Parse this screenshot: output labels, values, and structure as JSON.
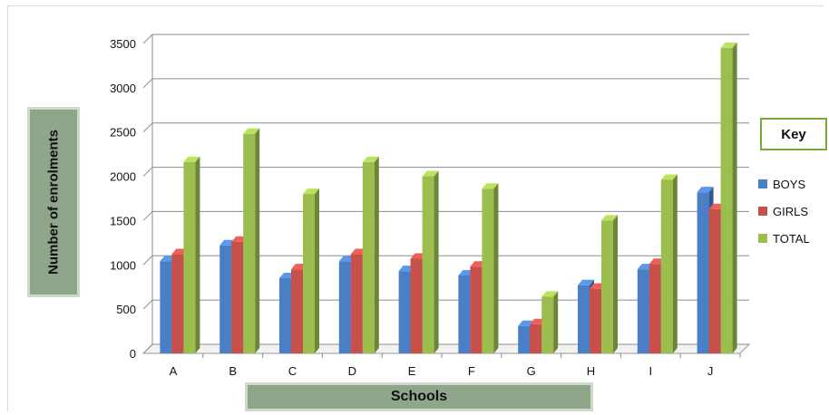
{
  "chart_data": {
    "type": "bar",
    "title": "",
    "xlabel": "Schools",
    "ylabel": "Number of enrolments",
    "categories": [
      "A",
      "B",
      "C",
      "D",
      "E",
      "F",
      "G",
      "H",
      "I",
      "J"
    ],
    "series": [
      {
        "name": "BOYS",
        "color": "#4a7fc6",
        "values": [
          1040,
          1220,
          850,
          1040,
          930,
          880,
          310,
          770,
          950,
          1820
        ]
      },
      {
        "name": "GIRLS",
        "color": "#c8504a",
        "values": [
          1120,
          1260,
          950,
          1120,
          1070,
          980,
          330,
          730,
          1010,
          1630
        ]
      },
      {
        "name": "TOTAL",
        "color": "#9bbe4e",
        "values": [
          2160,
          2480,
          1800,
          2160,
          2000,
          1860,
          640,
          1500,
          1960,
          3450
        ]
      }
    ],
    "ylim": [
      0,
      3500
    ],
    "yticks": [
      "0",
      "500",
      "1000",
      "1500",
      "2000",
      "2500",
      "3000",
      "3500"
    ],
    "grid": true,
    "legend": {
      "title": "Key",
      "position": "right"
    }
  }
}
